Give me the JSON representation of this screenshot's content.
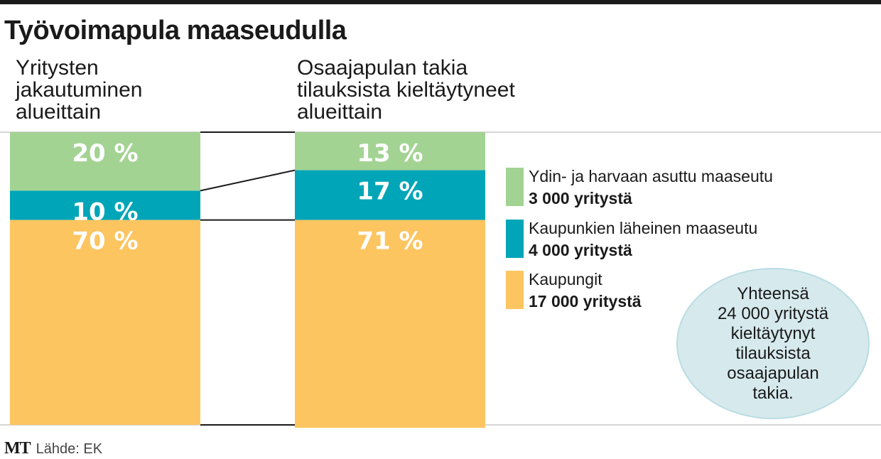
{
  "title": "Työvoimapula maaseudulla",
  "column_heads": {
    "left": [
      "Yritysten",
      "jakautuminen",
      "alueittain"
    ],
    "right": [
      "Osaajapulan takia",
      "tilauksista kieltäytyneet",
      "alueittain"
    ]
  },
  "colors": {
    "rural": "#a3d393",
    "near_city": "#00a5b8",
    "cities": "#fdc560",
    "text_on_bar": "#ffffff"
  },
  "legend": [
    {
      "key": "rural",
      "name": "Ydin- ja harvaan asuttu maaseutu",
      "count": "3 000 yritystä"
    },
    {
      "key": "near_city",
      "name": "Kaupunkien läheinen maaseutu",
      "count": "4 000 yritystä"
    },
    {
      "key": "cities",
      "name": "Kaupungit",
      "count": "17 000 yritystä"
    }
  ],
  "bubble": [
    "Yhteensä",
    "24 000 yritystä",
    "kieltäytynyt",
    "tilauksista",
    "osaajapulan",
    "takia."
  ],
  "footer": {
    "logo": "MT",
    "source": "Lähde: EK"
  },
  "chart_data": {
    "type": "bar",
    "stacked": true,
    "unit": "%",
    "categories": [
      "Yritysten jakautuminen alueittain",
      "Osaajapulan takia tilauksista kieltäytyneet alueittain"
    ],
    "series": [
      {
        "name": "Ydin- ja harvaan asuttu maaseutu",
        "values": [
          20,
          13
        ],
        "labels": [
          "20 %",
          "13 %"
        ]
      },
      {
        "name": "Kaupunkien läheinen maaseutu",
        "values": [
          10,
          17
        ],
        "labels": [
          "10 %",
          "17 %"
        ]
      },
      {
        "name": "Kaupungit",
        "values": [
          70,
          71
        ],
        "labels": [
          "70 %",
          "71 %"
        ]
      }
    ],
    "ylim": [
      0,
      100
    ]
  }
}
